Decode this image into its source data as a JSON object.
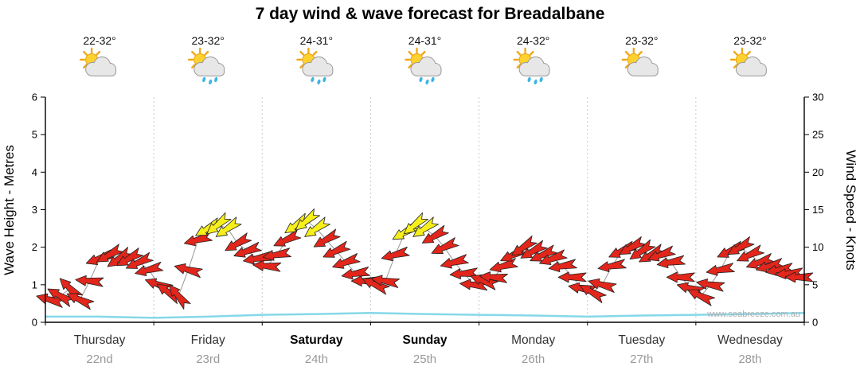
{
  "title": "7 day wind & wave forecast for Breadalbane",
  "watermark": "www.seabreeze.com.au",
  "colors": {
    "arrow_red": "#e2261b",
    "arrow_yellow": "#f6ef1c",
    "arrow_outline": "#222222",
    "wave_line": "#86d8e8",
    "grid_line": "#c8c8c8",
    "axis_line": "#000000",
    "day_label": "#333333",
    "weekend_label": "#000000",
    "date_label": "#999999",
    "watermark_color": "#b0b0b0"
  },
  "days": [
    {
      "name": "Thursday",
      "date": "22nd",
      "temp_range": "22-32°",
      "icon": "partly-cloudy",
      "weekend": false
    },
    {
      "name": "Friday",
      "date": "23rd",
      "temp_range": "23-32°",
      "icon": "partly-cloudy-showers",
      "weekend": false
    },
    {
      "name": "Saturday",
      "date": "24th",
      "temp_range": "24-31°",
      "icon": "partly-cloudy-showers",
      "weekend": true
    },
    {
      "name": "Sunday",
      "date": "25th",
      "temp_range": "24-31°",
      "icon": "partly-cloudy-showers",
      "weekend": true
    },
    {
      "name": "Monday",
      "date": "26th",
      "temp_range": "24-32°",
      "icon": "partly-cloudy-showers",
      "weekend": false
    },
    {
      "name": "Tuesday",
      "date": "27th",
      "temp_range": "23-32°",
      "icon": "partly-cloudy",
      "weekend": false
    },
    {
      "name": "Wednesday",
      "date": "28th",
      "temp_range": "23-32°",
      "icon": "partly-cloudy",
      "weekend": false
    }
  ],
  "chart_data": {
    "type": "wind-arrows",
    "title": "7 day wind & wave forecast for Breadalbane",
    "left_axis": {
      "label": "Wave Height - Metres",
      "range": [
        0,
        6
      ],
      "ticks": [
        0,
        1,
        2,
        3,
        4,
        5,
        6
      ]
    },
    "right_axis": {
      "label": "Wind Speed - Knots",
      "range": [
        0,
        30
      ],
      "ticks": [
        0,
        5,
        10,
        15,
        20,
        25,
        30
      ]
    },
    "color_rule": {
      "yellow_at_or_above_knots": 12,
      "red_below_knots": 12
    },
    "wind_series": [
      {
        "day": "Thursday",
        "knots": [
          3,
          3.5,
          4.5,
          3,
          5.5,
          8.5,
          9,
          8.5,
          8.5,
          8,
          7
        ],
        "dir_deg": [
          195,
          210,
          225,
          205,
          185,
          160,
          150,
          145,
          150,
          155,
          165
        ]
      },
      {
        "day": "Friday",
        "knots": [
          5,
          4,
          3.5,
          7,
          11,
          12.5,
          13,
          12.5,
          10.5,
          9.5,
          8.5
        ],
        "dir_deg": [
          200,
          215,
          230,
          195,
          165,
          150,
          140,
          145,
          150,
          160,
          170
        ]
      },
      {
        "day": "Saturday",
        "knots": [
          7.5,
          9,
          11,
          13,
          13.5,
          12.5,
          11,
          9.5,
          8,
          6.5,
          5.5
        ],
        "dir_deg": [
          185,
          170,
          155,
          145,
          140,
          145,
          150,
          155,
          160,
          170,
          180
        ]
      },
      {
        "day": "Sunday",
        "knots": [
          5,
          5.5,
          9,
          12,
          13,
          12.5,
          11.5,
          10,
          8,
          6.5,
          5
        ],
        "dir_deg": [
          205,
          190,
          165,
          150,
          140,
          145,
          150,
          155,
          165,
          175,
          185
        ]
      },
      {
        "day": "Monday",
        "knots": [
          5.5,
          6,
          7.5,
          9,
          10,
          9.5,
          9,
          8.5,
          7.5,
          6,
          4.5
        ],
        "dir_deg": [
          200,
          185,
          165,
          155,
          145,
          150,
          155,
          160,
          170,
          180,
          190
        ]
      },
      {
        "day": "Tuesday",
        "knots": [
          4,
          5,
          7.5,
          9.5,
          10,
          9.5,
          9,
          9,
          8,
          6,
          4.5
        ],
        "dir_deg": [
          210,
          195,
          170,
          155,
          150,
          145,
          150,
          160,
          170,
          180,
          195
        ]
      },
      {
        "day": "Wednesday",
        "knots": [
          3.5,
          5,
          7,
          9.5,
          10,
          9,
          8,
          7.5,
          7,
          6.5,
          6
        ],
        "dir_deg": [
          205,
          190,
          170,
          155,
          150,
          155,
          160,
          165,
          170,
          175,
          180
        ]
      }
    ],
    "wave_height_m": {
      "t_days": [
        0,
        0.5,
        1,
        1.5,
        2,
        2.5,
        3,
        3.5,
        4,
        4.5,
        5,
        5.5,
        6,
        6.5,
        7
      ],
      "metres": [
        0.15,
        0.15,
        0.12,
        0.15,
        0.2,
        0.22,
        0.25,
        0.22,
        0.2,
        0.18,
        0.15,
        0.18,
        0.2,
        0.22,
        0.25
      ]
    }
  }
}
